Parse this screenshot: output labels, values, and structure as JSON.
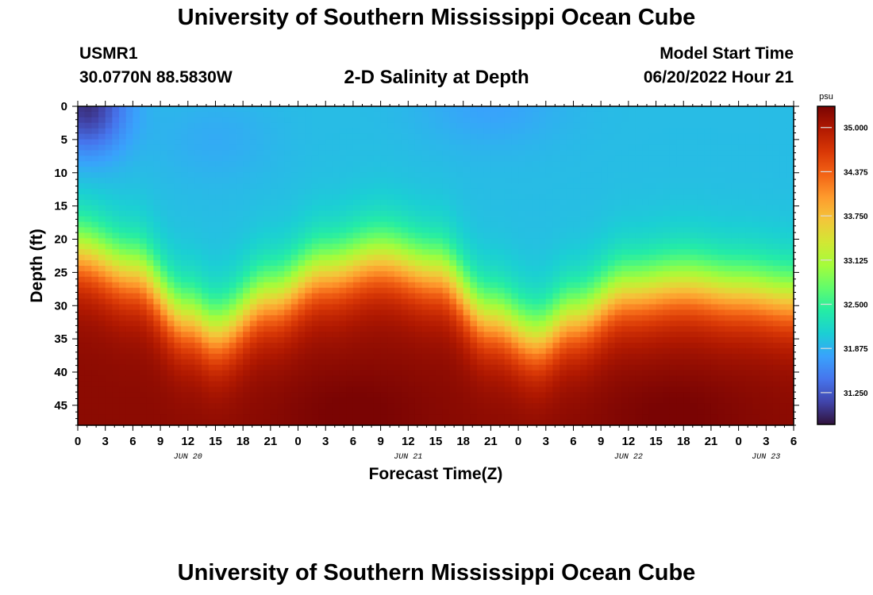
{
  "header": {
    "title": "University of Southern Mississippi Ocean Cube",
    "station": "USMR1",
    "coords": "30.0770N  88.5830W",
    "subtitle": "2-D Salinity at Depth",
    "model_start_label": "Model Start Time",
    "model_start_value": "06/20/2022 Hour 21"
  },
  "footer": {
    "title": "University of Southern Mississippi Ocean Cube"
  },
  "chart_data": {
    "type": "heatmap",
    "title": "2-D Salinity at Depth",
    "xlabel": "Forecast Time(Z)",
    "ylabel": "Depth (ft)",
    "x_tick_labels": [
      "0",
      "3",
      "6",
      "9",
      "12",
      "15",
      "18",
      "21",
      "0",
      "3",
      "6",
      "9",
      "12",
      "15",
      "18",
      "21",
      "0",
      "3",
      "6",
      "9",
      "12",
      "15",
      "18",
      "21",
      "0",
      "3",
      "6"
    ],
    "date_labels": [
      {
        "text": "JUN 20",
        "hours": 12
      },
      {
        "text": "JUN 21",
        "hours": 36
      },
      {
        "text": "JUN 22",
        "hours": 60
      },
      {
        "text": "JUN 23",
        "hours": 75
      }
    ],
    "xlim_hours": [
      0,
      78
    ],
    "y_ticks": [
      0,
      5,
      10,
      15,
      20,
      25,
      30,
      35,
      40,
      45
    ],
    "ylim": [
      0,
      48
    ],
    "y_inverted": true,
    "colorbar": {
      "unit": "psu",
      "range": [
        30.8,
        35.3
      ],
      "ticks": [
        "35.000",
        "34.375",
        "33.750",
        "33.125",
        "32.500",
        "31.875",
        "31.250"
      ],
      "colormap": [
        "#30123b",
        "#4145ab",
        "#4675ed",
        "#39a2fc",
        "#1bcfd4",
        "#24eca6",
        "#61fc6c",
        "#a4fc3b",
        "#d1e834",
        "#f3c63a",
        "#fe9b2d",
        "#f36315",
        "#d93806",
        "#b11901",
        "#7a0403"
      ]
    },
    "mixed_layer_depth_ft": {
      "hours": [
        0,
        6,
        12,
        15,
        21,
        27,
        33,
        39,
        45,
        50,
        54,
        60,
        66,
        72,
        78
      ],
      "values": [
        16,
        19,
        26,
        28,
        23,
        19,
        17,
        19,
        26,
        29,
        26,
        22,
        21,
        22,
        23
      ]
    },
    "surface_min_psu": 31.0,
    "deep_max_psu": 35.2
  }
}
